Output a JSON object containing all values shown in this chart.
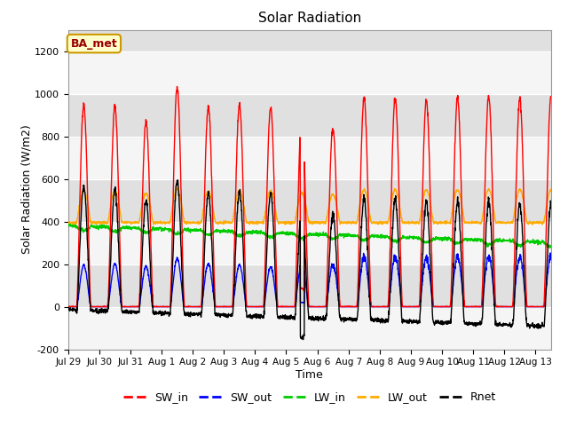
{
  "title": "Solar Radiation",
  "xlabel": "Time",
  "ylabel": "Solar Radiation (W/m2)",
  "ylim": [
    -200,
    1300
  ],
  "yticks": [
    -200,
    0,
    200,
    400,
    600,
    800,
    1000,
    1200
  ],
  "annotation": "BA_met",
  "legend_labels": [
    "SW_in",
    "SW_out",
    "LW_in",
    "LW_out",
    "Rnet"
  ],
  "colors": {
    "SW_in": "#ff0000",
    "SW_out": "#0000ff",
    "LW_in": "#00cc00",
    "LW_out": "#ffaa00",
    "Rnet": "#000000"
  },
  "background_color": "#ffffff",
  "plot_bg_color": "#e0e0e0",
  "band_color": "#f0f0f0",
  "n_days": 15.5,
  "points_per_day": 144,
  "xtick_labels": [
    "Jul 29",
    "Jul 30",
    "Jul 31",
    "Aug 1",
    "Aug 2",
    "Aug 3",
    "Aug 4",
    "Aug 5",
    "Aug 6",
    "Aug 7",
    "Aug 8",
    "Aug 9",
    "Aug 10",
    "Aug 11",
    "Aug 12",
    "Aug 13"
  ]
}
